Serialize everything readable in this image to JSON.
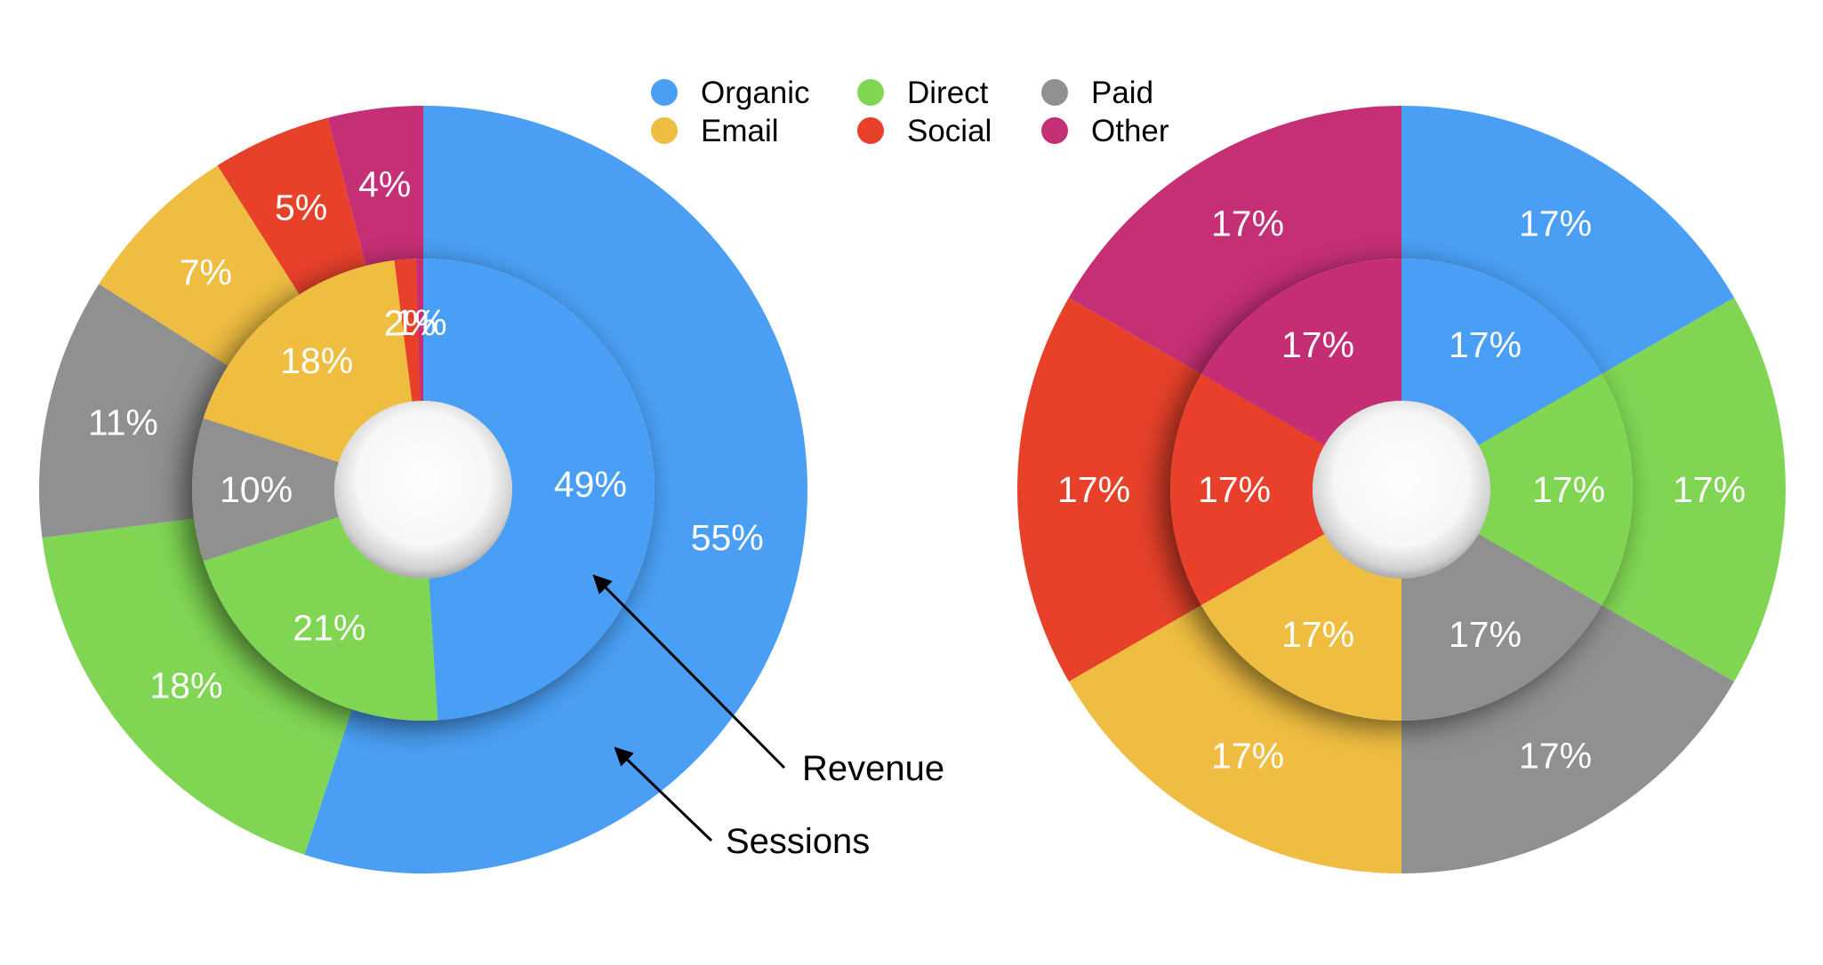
{
  "chart_data": [
    {
      "type": "pie",
      "categories": [
        "Organic",
        "Direct",
        "Paid",
        "Email",
        "Social",
        "Other"
      ],
      "colors": [
        "#4a9ff5",
        "#80d653",
        "#909090",
        "#efbd41",
        "#e8412a",
        "#c52f75"
      ],
      "series": [
        {
          "name": "Sessions",
          "values": [
            55,
            18,
            11,
            7,
            5,
            4
          ],
          "labels": [
            "55%",
            "18%",
            "11%",
            "7%",
            "5%",
            "4%"
          ]
        },
        {
          "name": "Revenue",
          "values": [
            49,
            21,
            10,
            18,
            1.5,
            0.5
          ],
          "labels": [
            "49%",
            "21%",
            "10%",
            "18%",
            "2%",
            "1%"
          ]
        }
      ],
      "annotations": [
        "Revenue",
        "Sessions"
      ]
    },
    {
      "type": "pie",
      "categories": [
        "Organic",
        "Direct",
        "Paid",
        "Email",
        "Social",
        "Other"
      ],
      "colors": [
        "#4a9ff5",
        "#80d653",
        "#909090",
        "#efbd41",
        "#e8412a",
        "#c52f75"
      ],
      "series": [
        {
          "values": [
            16.67,
            16.67,
            16.67,
            16.67,
            16.67,
            16.67
          ],
          "labels": [
            "17%",
            "17%",
            "17%",
            "17%",
            "17%",
            "17%"
          ]
        },
        {
          "values": [
            16.67,
            16.67,
            16.67,
            16.67,
            16.67,
            16.67
          ],
          "labels": [
            "17%",
            "17%",
            "17%",
            "17%",
            "17%",
            "17%"
          ]
        }
      ]
    }
  ],
  "legend": {
    "placement": "top-center",
    "items": [
      {
        "label": "Organic",
        "color": "#4a9ff5"
      },
      {
        "label": "Direct",
        "color": "#80d653"
      },
      {
        "label": "Paid",
        "color": "#909090"
      },
      {
        "label": "Email",
        "color": "#efbd41"
      },
      {
        "label": "Social",
        "color": "#e8412a"
      },
      {
        "label": "Other",
        "color": "#c52f75"
      }
    ]
  }
}
